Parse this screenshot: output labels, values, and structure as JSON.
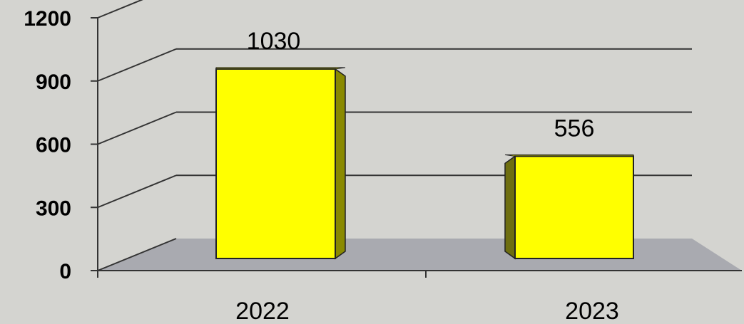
{
  "chart_data": {
    "type": "bar",
    "categories": [
      "2022",
      "2023"
    ],
    "values": [
      1030,
      556
    ],
    "data_labels": [
      "1030",
      "556"
    ],
    "yticks": [
      "0",
      "300",
      "600",
      "900",
      "1200"
    ],
    "ylim": [
      0,
      1200
    ],
    "grid": true,
    "style": "3d",
    "colors": {
      "bar_front": "#ffff00",
      "bar_side": "#8a8a00",
      "bar_side_dark": "#6e6e10",
      "bar_top": "#d8d800",
      "floor": "#a9aab0",
      "background": "#d4d4d0",
      "back_wall": "#cfd0d3",
      "grid": "#333333"
    }
  }
}
